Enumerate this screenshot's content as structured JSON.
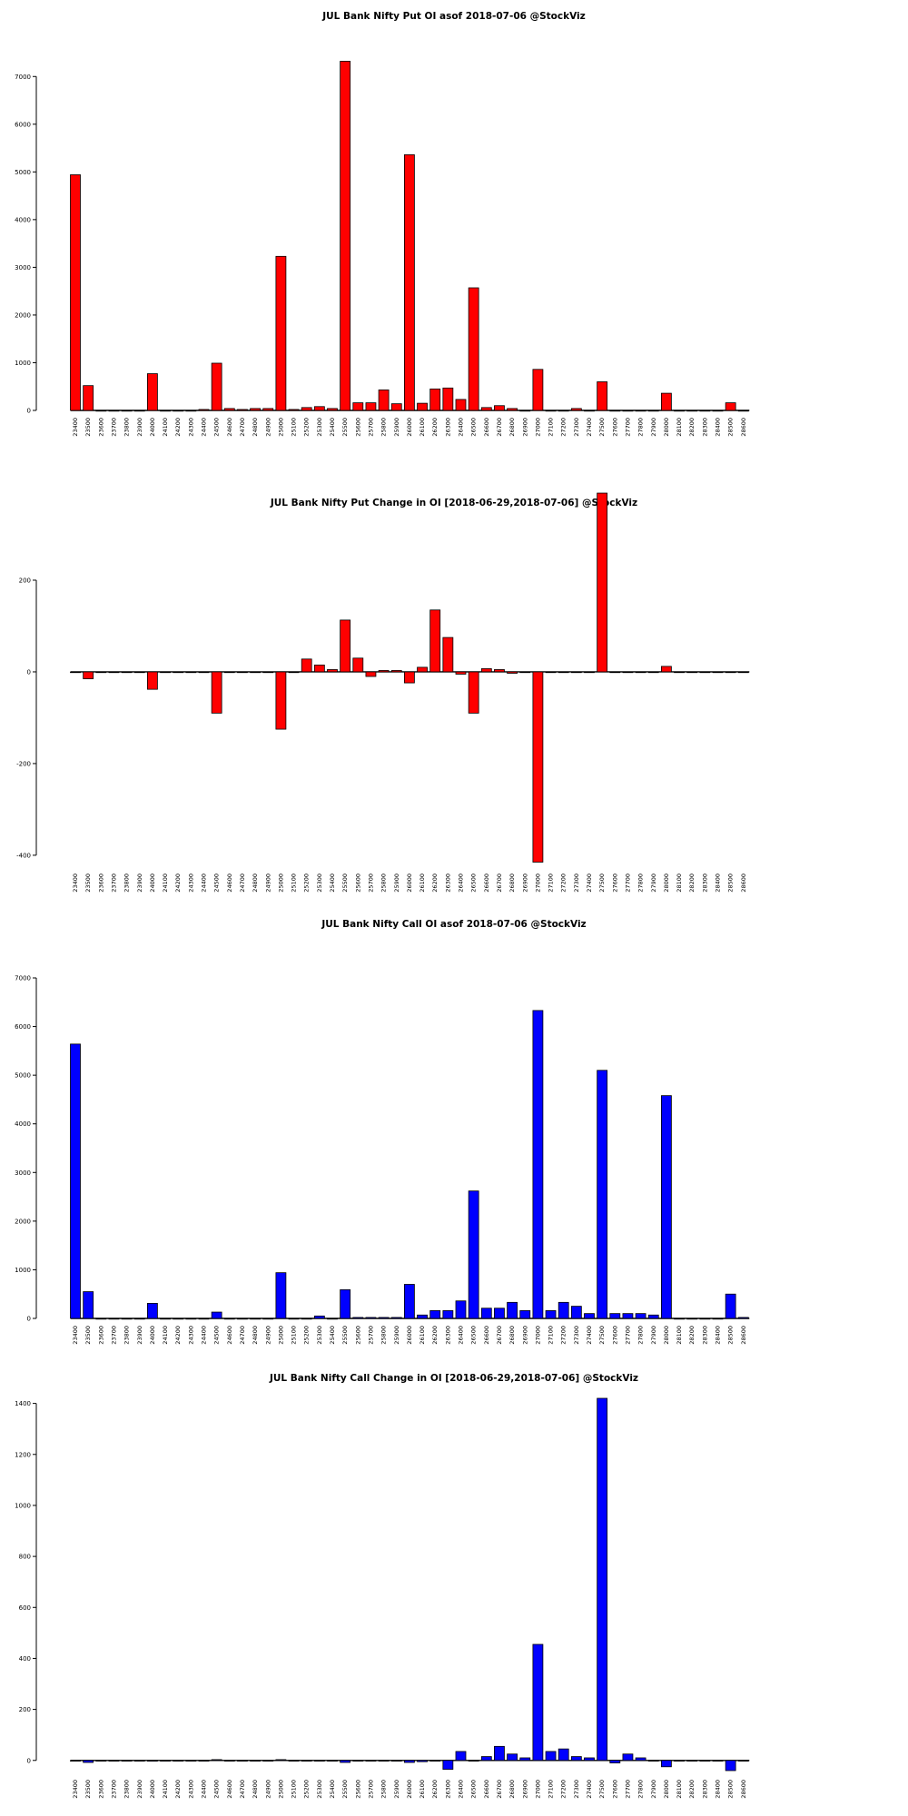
{
  "chart_data": [
    {
      "type": "bar",
      "title": "JUL Bank Nifty Put OI asof 2018-07-06 @StockViz",
      "color": "#ff0000",
      "categories": [
        "23400",
        "23500",
        "23600",
        "23700",
        "23800",
        "23900",
        "24000",
        "24100",
        "24200",
        "24300",
        "24400",
        "24500",
        "24600",
        "24700",
        "24800",
        "24900",
        "25000",
        "25100",
        "25200",
        "25300",
        "25400",
        "25500",
        "25600",
        "25700",
        "25800",
        "25900",
        "26000",
        "26100",
        "26200",
        "26300",
        "26400",
        "26500",
        "26600",
        "26700",
        "26800",
        "26900",
        "27000",
        "27100",
        "27200",
        "27300",
        "27400",
        "27500",
        "27600",
        "27700",
        "27800",
        "27900",
        "28000",
        "28100",
        "28200",
        "28300",
        "28400",
        "28500",
        "28600"
      ],
      "values": [
        4940,
        520,
        0,
        0,
        0,
        0,
        770,
        0,
        0,
        0,
        20,
        990,
        40,
        20,
        40,
        40,
        3230,
        20,
        60,
        80,
        40,
        7320,
        160,
        160,
        430,
        140,
        5360,
        150,
        450,
        470,
        230,
        2570,
        60,
        100,
        40,
        0,
        860,
        0,
        0,
        40,
        0,
        600,
        0,
        0,
        0,
        0,
        360,
        0,
        0,
        0,
        0,
        160,
        0
      ],
      "ylim": [
        0,
        7500
      ],
      "yticks": [
        0,
        1000,
        2000,
        3000,
        4000,
        5000,
        6000,
        7000
      ]
    },
    {
      "type": "bar",
      "title": "JUL Bank Nifty Put Change in OI [2018-06-29,2018-07-06] @StockViz",
      "color": "#ff0000",
      "categories": [
        "23400",
        "23500",
        "23600",
        "23700",
        "23800",
        "23900",
        "24000",
        "24100",
        "24200",
        "24300",
        "24400",
        "24500",
        "24600",
        "24700",
        "24800",
        "24900",
        "25000",
        "25100",
        "25200",
        "25300",
        "25400",
        "25500",
        "25600",
        "25700",
        "25800",
        "25900",
        "26000",
        "26100",
        "26200",
        "26300",
        "26400",
        "26500",
        "26600",
        "26700",
        "26800",
        "26900",
        "27000",
        "27100",
        "27200",
        "27300",
        "27400",
        "27500",
        "27600",
        "27700",
        "27800",
        "27900",
        "28000",
        "28100",
        "28200",
        "28300",
        "28400",
        "28500",
        "28600"
      ],
      "values": [
        0,
        -15,
        0,
        0,
        0,
        0,
        -38,
        0,
        0,
        0,
        0,
        -90,
        0,
        0,
        0,
        0,
        -125,
        0,
        28,
        15,
        5,
        113,
        30,
        -10,
        3,
        3,
        -24,
        10,
        135,
        75,
        -5,
        -90,
        7,
        5,
        -3,
        0,
        -415,
        0,
        0,
        0,
        0,
        390,
        0,
        0,
        0,
        0,
        12,
        0,
        0,
        0,
        0,
        0,
        0
      ],
      "ylim": [
        -420,
        400
      ],
      "yticks": [
        -400,
        -200,
        0,
        200
      ]
    },
    {
      "type": "bar",
      "title": "JUL Bank Nifty Call OI asof 2018-07-06 @StockViz",
      "color": "#0000ff",
      "categories": [
        "23400",
        "23500",
        "23600",
        "23700",
        "23800",
        "23900",
        "24000",
        "24100",
        "24200",
        "24300",
        "24400",
        "24500",
        "24600",
        "24700",
        "24800",
        "24900",
        "25000",
        "25100",
        "25200",
        "25300",
        "25400",
        "25500",
        "25600",
        "25700",
        "25800",
        "25900",
        "26000",
        "26100",
        "26200",
        "26300",
        "26400",
        "26500",
        "26600",
        "26700",
        "26800",
        "26900",
        "27000",
        "27100",
        "27200",
        "27300",
        "27400",
        "27500",
        "27600",
        "27700",
        "27800",
        "27900",
        "28000",
        "28100",
        "28200",
        "28300",
        "28400",
        "28500",
        "28600"
      ],
      "values": [
        5640,
        550,
        0,
        0,
        0,
        0,
        310,
        0,
        0,
        0,
        0,
        130,
        0,
        0,
        0,
        0,
        940,
        0,
        0,
        50,
        0,
        590,
        20,
        20,
        20,
        20,
        700,
        70,
        160,
        160,
        360,
        2620,
        210,
        210,
        330,
        160,
        6330,
        160,
        330,
        250,
        100,
        5100,
        100,
        100,
        100,
        70,
        4580,
        0,
        0,
        0,
        0,
        500,
        20
      ],
      "ylim": [
        0,
        7000
      ],
      "yticks": [
        0,
        1000,
        2000,
        3000,
        4000,
        5000,
        6000,
        7000
      ]
    },
    {
      "type": "bar",
      "title": "JUL Bank Nifty Call Change in OI [2018-06-29,2018-07-06] @StockViz",
      "color": "#0000ff",
      "categories": [
        "23400",
        "23500",
        "23600",
        "23700",
        "23800",
        "23900",
        "24000",
        "24100",
        "24200",
        "24300",
        "24400",
        "24500",
        "24600",
        "24700",
        "24800",
        "24900",
        "25000",
        "25100",
        "25200",
        "25300",
        "25400",
        "25500",
        "25600",
        "25700",
        "25800",
        "25900",
        "26000",
        "26100",
        "26200",
        "26300",
        "26400",
        "26500",
        "26600",
        "26700",
        "26800",
        "26900",
        "27000",
        "27100",
        "27200",
        "27300",
        "27400",
        "27500",
        "27600",
        "27700",
        "27800",
        "27900",
        "28000",
        "28100",
        "28200",
        "28300",
        "28400",
        "28500",
        "28600"
      ],
      "values": [
        0,
        -8,
        0,
        0,
        0,
        0,
        -3,
        0,
        0,
        0,
        0,
        3,
        0,
        0,
        0,
        0,
        3,
        0,
        0,
        0,
        0,
        -8,
        0,
        0,
        0,
        0,
        -8,
        -5,
        0,
        -35,
        35,
        0,
        15,
        55,
        25,
        10,
        455,
        35,
        45,
        15,
        10,
        1420,
        -10,
        25,
        10,
        0,
        -25,
        0,
        0,
        0,
        0,
        -40,
        0
      ],
      "ylim": [
        -40,
        1420
      ],
      "yticks": [
        0,
        200,
        400,
        600,
        800,
        1000,
        1200,
        1400
      ]
    }
  ]
}
